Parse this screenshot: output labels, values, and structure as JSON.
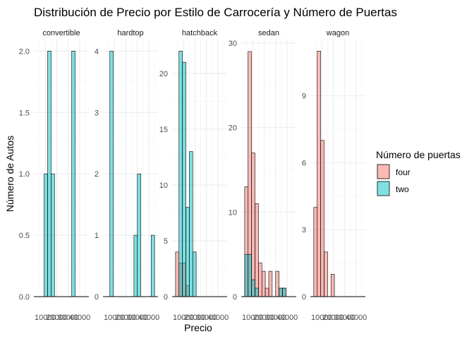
{
  "chart_data": {
    "type": "bar",
    "title": "Distribución de Precio por Estilo de Carrocería y Número de Puertas",
    "xlabel": "Precio",
    "ylabel": "Número de Autos",
    "legend": {
      "title": "Número de puertas",
      "position": "right",
      "entries": [
        "four",
        "two"
      ]
    },
    "colors": {
      "four": "#F8766D",
      "two": "#00BFC4",
      "opacity": 0.5
    },
    "xlim": [
      0,
      48000
    ],
    "xticks": [
      10000,
      20000,
      30000,
      40000
    ],
    "xtick_labels": [
      "10000",
      "20000",
      "30000",
      "40000"
    ],
    "binwidth": 3000,
    "grid": true,
    "facets": [
      {
        "name": "convertible",
        "ylim": [
          0,
          2.1
        ],
        "yticks": [
          0.0,
          0.5,
          1.0,
          1.5,
          2.0
        ],
        "ytick_labels": [
          "0.0",
          "0.5",
          "1.0",
          "1.5",
          "2.0"
        ],
        "bars": [
          {
            "door": "two",
            "x0": 9000,
            "x1": 12000,
            "count": 1
          },
          {
            "door": "two",
            "x0": 12000,
            "x1": 15000,
            "count": 2
          },
          {
            "door": "two",
            "x0": 15000,
            "x1": 18000,
            "count": 1
          },
          {
            "door": "two",
            "x0": 33000,
            "x1": 36000,
            "count": 2
          }
        ]
      },
      {
        "name": "hardtop",
        "ylim": [
          0,
          4.2
        ],
        "yticks": [
          0,
          1,
          2,
          3,
          4
        ],
        "ytick_labels": [
          "0",
          "1",
          "2",
          "3",
          "4"
        ],
        "bars": [
          {
            "door": "two",
            "x0": 6000,
            "x1": 9000,
            "count": 4
          },
          {
            "door": "two",
            "x0": 27000,
            "x1": 30000,
            "count": 1
          },
          {
            "door": "two",
            "x0": 30000,
            "x1": 33000,
            "count": 2
          },
          {
            "door": "two",
            "x0": 42000,
            "x1": 45000,
            "count": 1
          }
        ]
      },
      {
        "name": "hatchback",
        "ylim": [
          0,
          23.1
        ],
        "yticks": [
          0,
          5,
          10,
          15,
          20
        ],
        "ytick_labels": [
          "0",
          "5",
          "10",
          "15",
          "20"
        ],
        "bars": [
          {
            "door": "four",
            "x0": 3000,
            "x1": 6000,
            "count": 4
          },
          {
            "door": "four",
            "x0": 6000,
            "x1": 9000,
            "count": 3
          },
          {
            "door": "four",
            "x0": 9000,
            "x1": 12000,
            "count": 3
          },
          {
            "door": "four",
            "x0": 12000,
            "x1": 15000,
            "count": 1
          },
          {
            "door": "two",
            "x0": 6000,
            "x1": 9000,
            "count": 22
          },
          {
            "door": "two",
            "x0": 9000,
            "x1": 12000,
            "count": 21
          },
          {
            "door": "two",
            "x0": 12000,
            "x1": 15000,
            "count": 8
          },
          {
            "door": "two",
            "x0": 15000,
            "x1": 18000,
            "count": 13
          },
          {
            "door": "two",
            "x0": 18000,
            "x1": 21000,
            "count": 4
          }
        ]
      },
      {
        "name": "sedan",
        "ylim": [
          0,
          30.5
        ],
        "yticks": [
          0,
          10,
          20,
          30
        ],
        "ytick_labels": [
          "0",
          "10",
          "20",
          "30"
        ],
        "bars": [
          {
            "door": "four",
            "x0": 3000,
            "x1": 6000,
            "count": 13
          },
          {
            "door": "four",
            "x0": 6000,
            "x1": 9000,
            "count": 29
          },
          {
            "door": "four",
            "x0": 9000,
            "x1": 12000,
            "count": 17
          },
          {
            "door": "four",
            "x0": 12000,
            "x1": 15000,
            "count": 11
          },
          {
            "door": "four",
            "x0": 15000,
            "x1": 18000,
            "count": 4
          },
          {
            "door": "four",
            "x0": 18000,
            "x1": 21000,
            "count": 3
          },
          {
            "door": "four",
            "x0": 21000,
            "x1": 24000,
            "count": 1
          },
          {
            "door": "four",
            "x0": 24000,
            "x1": 27000,
            "count": 3
          },
          {
            "door": "four",
            "x0": 30000,
            "x1": 33000,
            "count": 3
          },
          {
            "door": "four",
            "x0": 33000,
            "x1": 36000,
            "count": 1
          },
          {
            "door": "four",
            "x0": 36000,
            "x1": 39000,
            "count": 1
          },
          {
            "door": "two",
            "x0": 3000,
            "x1": 6000,
            "count": 5
          },
          {
            "door": "two",
            "x0": 6000,
            "x1": 9000,
            "count": 5
          },
          {
            "door": "two",
            "x0": 9000,
            "x1": 12000,
            "count": 2
          },
          {
            "door": "two",
            "x0": 12000,
            "x1": 15000,
            "count": 1
          },
          {
            "door": "two",
            "x0": 33000,
            "x1": 36000,
            "count": 1
          },
          {
            "door": "two",
            "x0": 36000,
            "x1": 39000,
            "count": 1
          }
        ]
      },
      {
        "name": "wagon",
        "ylim": [
          0,
          11.55
        ],
        "yticks": [
          0,
          3,
          6,
          9
        ],
        "ytick_labels": [
          "0",
          "3",
          "6",
          "9"
        ],
        "bars": [
          {
            "door": "four",
            "x0": 3000,
            "x1": 6000,
            "count": 4
          },
          {
            "door": "four",
            "x0": 6000,
            "x1": 9000,
            "count": 11
          },
          {
            "door": "four",
            "x0": 9000,
            "x1": 12000,
            "count": 7
          },
          {
            "door": "four",
            "x0": 12000,
            "x1": 15000,
            "count": 2
          },
          {
            "door": "four",
            "x0": 18000,
            "x1": 21000,
            "count": 1
          }
        ]
      }
    ]
  }
}
